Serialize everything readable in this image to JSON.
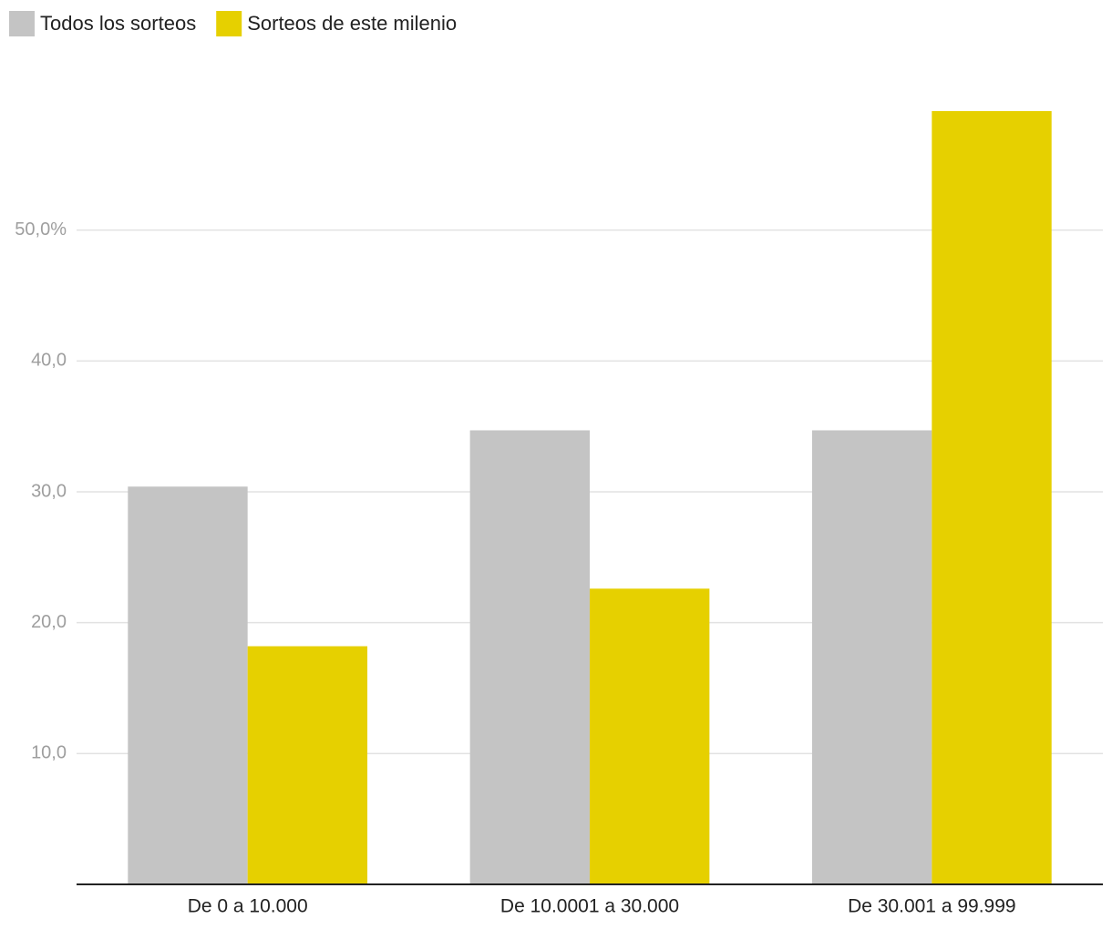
{
  "chart_data": {
    "type": "bar",
    "categories": [
      "De 0 a 10.000",
      "De 10.0001 a 30.000",
      "De 30.001 a 99.999"
    ],
    "series": [
      {
        "name": "Todos los sorteos",
        "color": "#c4c4c4",
        "values": [
          30.4,
          34.7,
          34.7
        ]
      },
      {
        "name": "Sorteos de este milenio",
        "color": "#e6d000",
        "values": [
          18.2,
          22.6,
          59.1
        ]
      }
    ],
    "ylim": [
      0,
      60
    ],
    "yticks": [
      {
        "value": 10,
        "label": "10,0"
      },
      {
        "value": 20,
        "label": "20,0"
      },
      {
        "value": 30,
        "label": "30,0"
      },
      {
        "value": 40,
        "label": "40,0"
      },
      {
        "value": 50,
        "label": "50,0%"
      }
    ],
    "grid": true,
    "legend": "top-left"
  }
}
